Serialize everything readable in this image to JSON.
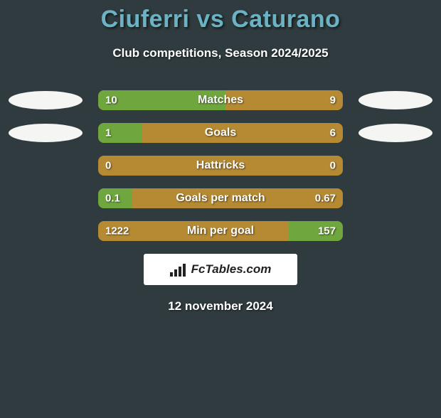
{
  "colors": {
    "page_bg": "#2f3b3e",
    "title_color": "#6bb3c4",
    "bar_bg": "#b68a33",
    "bar_fill": "#6fa73e",
    "badge_bg": "#ffffff",
    "badge_text": "#222222",
    "logo_bg": "#f5f5f3"
  },
  "header": {
    "title": "Ciuferri vs Caturano",
    "subtitle": "Club competitions, Season 2024/2025"
  },
  "stats": [
    {
      "label": "Matches",
      "left_value": "10",
      "right_value": "9",
      "left_fill_pct": 52,
      "right_fill_pct": 0,
      "show_left_logo": true,
      "show_right_logo": true
    },
    {
      "label": "Goals",
      "left_value": "1",
      "right_value": "6",
      "left_fill_pct": 18,
      "right_fill_pct": 0,
      "show_left_logo": true,
      "show_right_logo": true
    },
    {
      "label": "Hattricks",
      "left_value": "0",
      "right_value": "0",
      "left_fill_pct": 0,
      "right_fill_pct": 0,
      "show_left_logo": false,
      "show_right_logo": false
    },
    {
      "label": "Goals per match",
      "left_value": "0.1",
      "right_value": "0.67",
      "left_fill_pct": 14,
      "right_fill_pct": 0,
      "show_left_logo": false,
      "show_right_logo": false
    },
    {
      "label": "Min per goal",
      "left_value": "1222",
      "right_value": "157",
      "left_fill_pct": 0,
      "right_fill_pct": 22,
      "show_left_logo": false,
      "show_right_logo": false
    }
  ],
  "badge": {
    "text": "FcTables.com"
  },
  "footer": {
    "date": "12 november 2024"
  }
}
